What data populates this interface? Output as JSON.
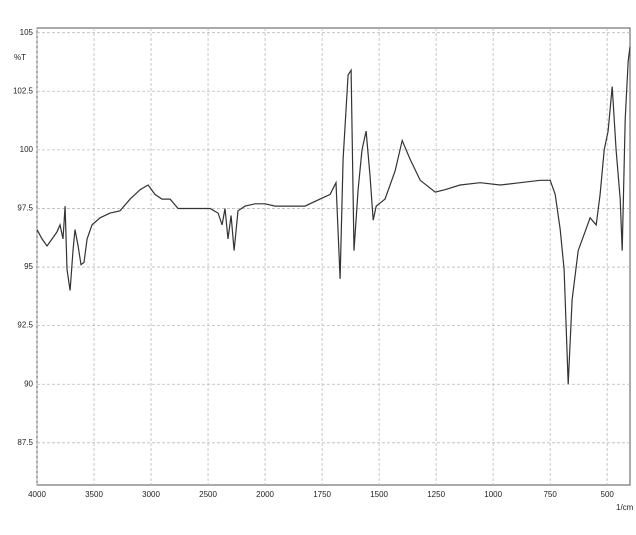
{
  "chart_data": {
    "type": "line",
    "y_label": "%T",
    "x_label": "1/cm",
    "color": "#333333",
    "grid": true,
    "x": [
      4000,
      3956,
      3912,
      3868,
      3825,
      3798,
      3772,
      3754,
      3737,
      3710,
      3684,
      3667,
      3640,
      3614,
      3588,
      3561,
      3518,
      3447,
      3360,
      3272,
      3184,
      3096,
      3026,
      2965,
      2904,
      2833,
      2763,
      2658,
      2482,
      2412,
      2377,
      2351,
      2325,
      2298,
      2272,
      2237,
      2175,
      2088,
      2000,
      1956,
      1890,
      1825,
      1759,
      1715,
      1689,
      1671,
      1658,
      1636,
      1623,
      1610,
      1592,
      1575,
      1557,
      1540,
      1526,
      1513,
      1474,
      1430,
      1399,
      1364,
      1320,
      1254,
      1211,
      1145,
      1057,
      969,
      882,
      794,
      750,
      728,
      706,
      689,
      671,
      654,
      627,
      601,
      575,
      548,
      531,
      513,
      496,
      478,
      461,
      443,
      434,
      421,
      408,
      400
    ],
    "values": [
      96.6,
      96.2,
      95.9,
      96.2,
      96.5,
      96.8,
      96.2,
      97.6,
      94.9,
      94.0,
      95.7,
      96.6,
      95.9,
      95.1,
      95.2,
      96.2,
      96.8,
      97.1,
      97.3,
      97.4,
      97.9,
      98.3,
      98.5,
      98.1,
      97.9,
      97.9,
      97.5,
      97.5,
      97.5,
      97.3,
      96.8,
      97.5,
      96.2,
      97.2,
      95.7,
      97.4,
      97.6,
      97.7,
      97.7,
      97.6,
      97.6,
      97.6,
      97.9,
      98.1,
      98.6,
      94.5,
      99.6,
      103.2,
      103.4,
      95.7,
      98.3,
      100.0,
      100.8,
      98.9,
      97.0,
      97.6,
      97.9,
      99.1,
      100.4,
      99.6,
      98.7,
      98.2,
      98.3,
      98.5,
      98.6,
      98.5,
      98.6,
      98.7,
      98.7,
      98.1,
      96.6,
      94.9,
      90.0,
      93.6,
      95.7,
      96.4,
      97.1,
      96.8,
      98.1,
      100.0,
      100.8,
      102.7,
      100.0,
      97.9,
      95.7,
      101.3,
      103.8,
      104.4
    ],
    "xlim": [
      4000,
      400
    ],
    "xticks": [
      4000,
      3500,
      3000,
      2500,
      2000,
      1750,
      1500,
      1250,
      1000,
      750,
      500
    ],
    "ylim": [
      85.7,
      105.2
    ],
    "yticks": [
      87.5,
      90,
      92.5,
      95,
      97.5,
      100,
      102.5,
      105
    ]
  }
}
